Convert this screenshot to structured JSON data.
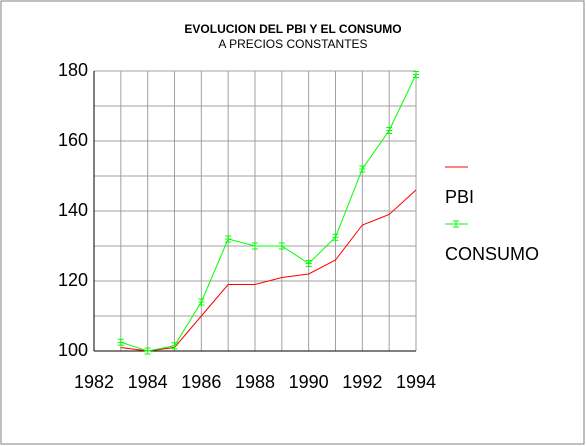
{
  "chart_data": {
    "type": "line",
    "title": "EVOLUCION DEL PBI Y EL CONSUMO",
    "subtitle": "A PRECIOS CONSTANTES",
    "x": [
      1983,
      1984,
      1985,
      1986,
      1987,
      1988,
      1989,
      1990,
      1991,
      1992,
      1993,
      1994
    ],
    "series": [
      {
        "name": "PBI",
        "color": "#ff0000",
        "marker": false,
        "values": [
          101,
          100,
          101,
          110,
          119,
          119,
          121,
          122,
          126,
          136,
          139,
          146
        ]
      },
      {
        "name": "CONSUMO",
        "color": "#00ff00",
        "marker": true,
        "values": [
          102.5,
          100,
          101.5,
          114,
          132,
          130,
          130,
          125,
          132.5,
          152,
          163,
          179
        ]
      }
    ],
    "xlim": [
      1982,
      1994
    ],
    "xticks": [
      1982,
      1984,
      1986,
      1988,
      1990,
      1992,
      1994
    ],
    "xminor": [
      1983,
      1985,
      1987,
      1989,
      1991,
      1993
    ],
    "ylim": [
      100,
      180
    ],
    "yticks": [
      100,
      120,
      140,
      160,
      180
    ],
    "yminor": [
      110,
      130,
      150,
      170
    ],
    "grid": true,
    "legend": "right"
  }
}
